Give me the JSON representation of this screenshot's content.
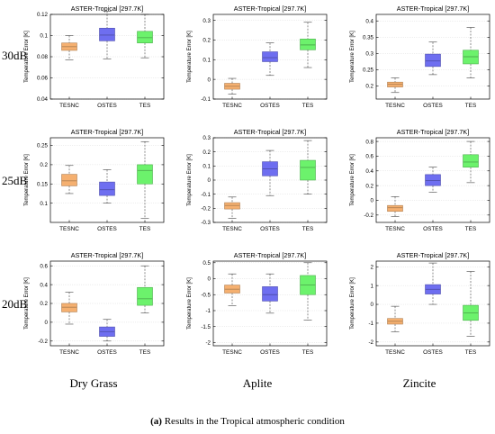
{
  "row_labels": [
    "30dB",
    "25dB",
    "20dB"
  ],
  "column_labels": [
    "Dry Grass",
    "Aplite",
    "Zincite"
  ],
  "caption": {
    "tag": "(a)",
    "text": "Results in the Tropical atmospheric condition"
  },
  "colors": {
    "TESNC": "#f5b070",
    "OSTES": "#6e6ef0",
    "TES": "#6cf26c"
  },
  "chart_data": [
    {
      "type": "box",
      "title": "ASTER-Tropical [297.7K]",
      "ylabel": "Temperature Error [K]",
      "categories": [
        "TESNC",
        "OSTES",
        "TES"
      ],
      "ylim": [
        0.04,
        0.12
      ],
      "yticks": [
        0.04,
        0.06,
        0.08,
        0.1,
        0.12
      ],
      "ytick_labels": [
        "0.04",
        "0.06",
        "0.08",
        "0.1",
        "0.12"
      ],
      "boxes": [
        {
          "whislo": 0.077,
          "q1": 0.086,
          "med": 0.0895,
          "q3": 0.093,
          "whishi": 0.1
        },
        {
          "whislo": 0.078,
          "q1": 0.095,
          "med": 0.1005,
          "q3": 0.107,
          "whishi": 0.123
        },
        {
          "whislo": 0.079,
          "q1": 0.093,
          "med": 0.098,
          "q3": 0.104,
          "whishi": 0.12
        }
      ]
    },
    {
      "type": "box",
      "title": "ASTER-Tropical [297.7K]",
      "ylabel": "Temperature Error [K]",
      "categories": [
        "TESNC",
        "OSTES",
        "TES"
      ],
      "ylim": [
        -0.1,
        0.33
      ],
      "yticks": [
        -0.1,
        0,
        0.1,
        0.2,
        0.3
      ],
      "ytick_labels": [
        "-0.1",
        "0",
        "0.1",
        "0.2",
        "0.3"
      ],
      "boxes": [
        {
          "whislo": -0.075,
          "q1": -0.05,
          "med": -0.035,
          "q3": -0.02,
          "whishi": 0.005
        },
        {
          "whislo": 0.02,
          "q1": 0.09,
          "med": 0.11,
          "q3": 0.14,
          "whishi": 0.185
        },
        {
          "whislo": 0.06,
          "q1": 0.15,
          "med": 0.175,
          "q3": 0.205,
          "whishi": 0.29
        }
      ]
    },
    {
      "type": "box",
      "title": "ASTER-Tropical [297.7K]",
      "ylabel": "Temperature Error [K]",
      "categories": [
        "TESNC",
        "OSTES",
        "TES"
      ],
      "ylim": [
        0.16,
        0.42
      ],
      "yticks": [
        0.2,
        0.25,
        0.3,
        0.35,
        0.4
      ],
      "ytick_labels": [
        "0.2",
        "0.25",
        "0.3",
        "0.35",
        "0.4"
      ],
      "boxes": [
        {
          "whislo": 0.18,
          "q1": 0.197,
          "med": 0.205,
          "q3": 0.212,
          "whishi": 0.225
        },
        {
          "whislo": 0.235,
          "q1": 0.26,
          "med": 0.277,
          "q3": 0.298,
          "whishi": 0.335
        },
        {
          "whislo": 0.225,
          "q1": 0.268,
          "med": 0.29,
          "q3": 0.31,
          "whishi": 0.38
        }
      ]
    },
    {
      "type": "box",
      "title": "ASTER-Tropical [297.7K]",
      "ylabel": "Temperature Error [K]",
      "categories": [
        "TESNC",
        "OSTES",
        "TES"
      ],
      "ylim": [
        0.05,
        0.27
      ],
      "yticks": [
        0.1,
        0.15,
        0.2,
        0.25
      ],
      "ytick_labels": [
        "0.1",
        "0.15",
        "0.2",
        "0.25"
      ],
      "boxes": [
        {
          "whislo": 0.125,
          "q1": 0.145,
          "med": 0.158,
          "q3": 0.175,
          "whishi": 0.198
        },
        {
          "whislo": 0.1,
          "q1": 0.12,
          "med": 0.135,
          "q3": 0.155,
          "whishi": 0.187
        },
        {
          "whislo": 0.06,
          "q1": 0.15,
          "med": 0.185,
          "q3": 0.2,
          "whishi": 0.26
        }
      ]
    },
    {
      "type": "box",
      "title": "ASTER-Tropical [297.7K]",
      "ylabel": "Temperature Error [K]",
      "categories": [
        "TESNC",
        "OSTES",
        "TES"
      ],
      "ylim": [
        -0.3,
        0.3
      ],
      "yticks": [
        -0.3,
        -0.2,
        -0.1,
        0,
        0.1,
        0.2,
        0.3
      ],
      "ytick_labels": [
        "-0.3",
        "-0.2",
        "-0.1",
        "0",
        "0.1",
        "0.2",
        "0.3"
      ],
      "boxes": [
        {
          "whislo": -0.27,
          "q1": -0.205,
          "med": -0.18,
          "q3": -0.16,
          "whishi": -0.12
        },
        {
          "whislo": -0.11,
          "q1": 0.03,
          "med": 0.08,
          "q3": 0.13,
          "whishi": 0.21
        },
        {
          "whislo": -0.1,
          "q1": 0.0,
          "med": 0.09,
          "q3": 0.14,
          "whishi": 0.28
        }
      ]
    },
    {
      "type": "box",
      "title": "ASTER-Tropical [297.7K]",
      "ylabel": "Temperature Error [K]",
      "categories": [
        "TESNC",
        "OSTES",
        "TES"
      ],
      "ylim": [
        -0.3,
        0.85
      ],
      "yticks": [
        -0.2,
        0,
        0.2,
        0.4,
        0.6,
        0.8
      ],
      "ytick_labels": [
        "-0.2",
        "0",
        "0.2",
        "0.4",
        "0.6",
        "0.8"
      ],
      "boxes": [
        {
          "whislo": -0.22,
          "q1": -0.15,
          "med": -0.1,
          "q3": -0.07,
          "whishi": 0.05
        },
        {
          "whislo": 0.11,
          "q1": 0.2,
          "med": 0.27,
          "q3": 0.35,
          "whishi": 0.45
        },
        {
          "whislo": 0.24,
          "q1": 0.45,
          "med": 0.52,
          "q3": 0.62,
          "whishi": 0.8
        }
      ]
    },
    {
      "type": "box",
      "title": "ASTER-Tropical [297.7K]",
      "ylabel": "Temperature Error [K]",
      "categories": [
        "TESNC",
        "OSTES",
        "TES"
      ],
      "ylim": [
        -0.25,
        0.65
      ],
      "yticks": [
        -0.2,
        0,
        0.2,
        0.4,
        0.6
      ],
      "ytick_labels": [
        "-0.2",
        "0",
        "0.2",
        "0.4",
        "0.6"
      ],
      "boxes": [
        {
          "whislo": -0.02,
          "q1": 0.11,
          "med": 0.16,
          "q3": 0.2,
          "whishi": 0.32
        },
        {
          "whislo": -0.2,
          "q1": -0.15,
          "med": -0.1,
          "q3": -0.05,
          "whishi": 0.03
        },
        {
          "whislo": 0.1,
          "q1": 0.18,
          "med": 0.25,
          "q3": 0.37,
          "whishi": 0.6
        }
      ]
    },
    {
      "type": "box",
      "title": "ASTER-Tropical [297.7K]",
      "ylabel": "Temperature Error [K]",
      "categories": [
        "TESNC",
        "OSTES",
        "TES"
      ],
      "ylim": [
        -2.1,
        0.55
      ],
      "yticks": [
        -2,
        -1.5,
        -1,
        -0.5,
        0,
        0.5
      ],
      "ytick_labels": [
        "-2",
        "-1.5",
        "-1",
        "-0.5",
        "0",
        "0.5"
      ],
      "boxes": [
        {
          "whislo": -0.85,
          "q1": -0.45,
          "med": -0.33,
          "q3": -0.2,
          "whishi": 0.15
        },
        {
          "whislo": -1.08,
          "q1": -0.7,
          "med": -0.5,
          "q3": -0.25,
          "whishi": 0.15
        },
        {
          "whislo": -1.3,
          "q1": -0.5,
          "med": -0.2,
          "q3": 0.1,
          "whishi": 0.5
        }
      ]
    },
    {
      "type": "box",
      "title": "ASTER-Tropical [297.7K]",
      "ylabel": "Temperature Error [K]",
      "categories": [
        "TESNC",
        "OSTES",
        "TES"
      ],
      "ylim": [
        -2.2,
        2.3
      ],
      "yticks": [
        -2,
        -1,
        0,
        1,
        2
      ],
      "ytick_labels": [
        "-2",
        "-1",
        "0",
        "1",
        "2"
      ],
      "boxes": [
        {
          "whislo": -1.45,
          "q1": -1.05,
          "med": -0.9,
          "q3": -0.75,
          "whishi": -0.1
        },
        {
          "whislo": 0.0,
          "q1": 0.55,
          "med": 0.8,
          "q3": 1.05,
          "whishi": 2.2
        },
        {
          "whislo": -1.7,
          "q1": -0.85,
          "med": -0.45,
          "q3": -0.05,
          "whishi": 1.75
        }
      ]
    }
  ]
}
